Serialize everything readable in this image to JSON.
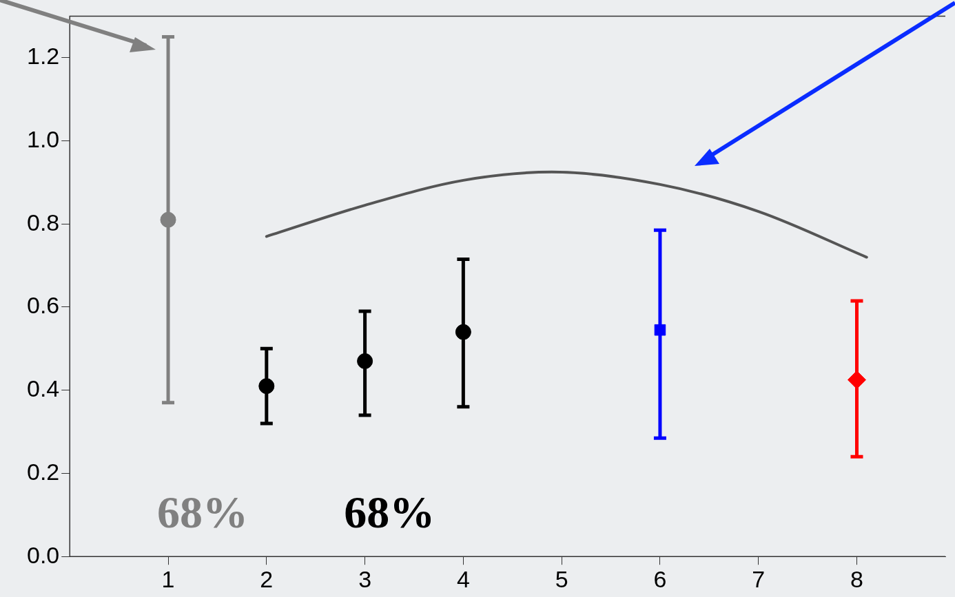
{
  "chart_data": {
    "type": "scatter",
    "xlim": [
      0,
      8.9
    ],
    "ylim": [
      0,
      1.3
    ],
    "xticks": [
      1,
      2,
      3,
      4,
      5,
      6,
      7,
      8
    ],
    "yticks": [
      {
        "value": 0,
        "label": "0.0"
      },
      {
        "value": 0.2,
        "label": "0.2"
      },
      {
        "value": 0.4,
        "label": "0.4"
      },
      {
        "value": 0.6,
        "label": "0.6"
      },
      {
        "value": 0.8,
        "label": "0.8"
      },
      {
        "value": 1,
        "label": "1.0"
      },
      {
        "value": 1.2,
        "label": "1.2"
      }
    ],
    "grid": false,
    "legend": false,
    "series": [
      {
        "type": "scatter",
        "color": "#808080",
        "marker": "circle",
        "x": [
          1
        ],
        "values": [
          0.81
        ],
        "errors": [
          [
            0.37,
            1.25
          ]
        ]
      },
      {
        "type": "scatter",
        "color": "#000000",
        "marker": "circle",
        "x": [
          2,
          3,
          4
        ],
        "values": [
          0.41,
          0.47,
          0.54
        ],
        "errors": [
          [
            0.32,
            0.5
          ],
          [
            0.34,
            0.59
          ],
          [
            0.36,
            0.715
          ]
        ]
      },
      {
        "type": "scatter",
        "color": "#0000ff",
        "marker": "square",
        "x": [
          6
        ],
        "values": [
          0.545
        ],
        "errors": [
          [
            0.285,
            0.785
          ]
        ]
      },
      {
        "type": "scatter",
        "color": "#ff0000",
        "marker": "diamond",
        "x": [
          8
        ],
        "values": [
          0.425
        ],
        "errors": [
          [
            0.24,
            0.615
          ]
        ]
      },
      {
        "type": "line",
        "color": "#555555",
        "marker": "none",
        "x": [
          2,
          3,
          4,
          4.9,
          6,
          7,
          8.1
        ],
        "values": [
          0.77,
          0.845,
          0.905,
          0.925,
          0.895,
          0.83,
          0.72
        ]
      }
    ],
    "annotations": [
      "68%",
      "68%"
    ]
  }
}
